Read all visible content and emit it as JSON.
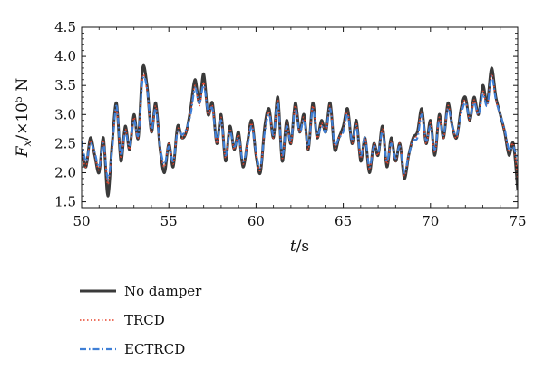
{
  "chart_data": {
    "type": "line",
    "xlabel": {
      "italic": "t",
      "rest": "/s"
    },
    "ylabel": {
      "italic": "F",
      "sub": "x",
      "pre": "/×10",
      "sup": "5",
      "post": " N"
    },
    "xlim": [
      50,
      75
    ],
    "ylim": [
      1.4,
      4.5
    ],
    "xticks": [
      "50",
      "55",
      "60",
      "65",
      "70",
      "75"
    ],
    "yticks": [
      "1.5",
      "2.0",
      "2.5",
      "3.0",
      "3.5",
      "4.0",
      "4.5"
    ],
    "grid": false,
    "legend_position": "below",
    "x": [
      50.0,
      50.25,
      50.5,
      50.75,
      51.0,
      51.25,
      51.5,
      51.75,
      52.0,
      52.25,
      52.5,
      52.75,
      53.0,
      53.25,
      53.5,
      53.75,
      54.0,
      54.25,
      54.5,
      54.75,
      55.0,
      55.25,
      55.5,
      55.75,
      56.0,
      56.25,
      56.5,
      56.75,
      57.0,
      57.25,
      57.5,
      57.75,
      58.0,
      58.25,
      58.5,
      58.75,
      59.0,
      59.25,
      59.5,
      59.75,
      60.0,
      60.25,
      60.5,
      60.75,
      61.0,
      61.25,
      61.5,
      61.75,
      62.0,
      62.25,
      62.5,
      62.75,
      63.0,
      63.25,
      63.5,
      63.75,
      64.0,
      64.25,
      64.5,
      64.75,
      65.0,
      65.25,
      65.5,
      65.75,
      66.0,
      66.25,
      66.5,
      66.75,
      67.0,
      67.25,
      67.5,
      67.75,
      68.0,
      68.25,
      68.5,
      68.75,
      69.0,
      69.25,
      69.5,
      69.75,
      70.0,
      70.25,
      70.5,
      70.75,
      71.0,
      71.25,
      71.5,
      71.75,
      72.0,
      72.25,
      72.5,
      72.75,
      73.0,
      73.25,
      73.5,
      73.75,
      74.0,
      74.25,
      74.5,
      74.75,
      75.0
    ],
    "series": [
      {
        "name": "No damper",
        "color": "#3a3a3a",
        "dash": "solid",
        "values": [
          2.4,
          2.1,
          2.6,
          2.3,
          2.0,
          2.6,
          1.6,
          2.5,
          3.2,
          2.2,
          2.8,
          2.4,
          3.0,
          2.6,
          3.8,
          3.5,
          2.7,
          3.2,
          2.4,
          2.0,
          2.5,
          2.1,
          2.8,
          2.6,
          2.7,
          3.1,
          3.6,
          3.2,
          3.7,
          3.0,
          3.2,
          2.5,
          3.0,
          2.2,
          2.8,
          2.4,
          2.7,
          2.1,
          2.5,
          2.9,
          2.3,
          2.0,
          2.8,
          3.1,
          2.6,
          3.3,
          2.2,
          2.9,
          2.5,
          3.2,
          2.7,
          3.0,
          2.4,
          3.2,
          2.6,
          2.9,
          2.7,
          3.2,
          2.4,
          2.6,
          2.8,
          3.1,
          2.5,
          2.9,
          2.2,
          2.6,
          2.0,
          2.5,
          2.3,
          2.8,
          2.1,
          2.6,
          2.2,
          2.5,
          1.9,
          2.3,
          2.6,
          2.7,
          3.1,
          2.5,
          2.9,
          2.3,
          3.0,
          2.6,
          3.2,
          2.8,
          2.6,
          3.1,
          3.3,
          2.9,
          3.3,
          3.0,
          3.5,
          3.2,
          3.8,
          3.3,
          3.0,
          2.7,
          2.3,
          2.5,
          1.7
        ]
      },
      {
        "name": "TRCD",
        "color": "#e8432b",
        "dash": "dotted",
        "values": [
          2.35,
          2.1,
          2.55,
          2.3,
          2.05,
          2.55,
          1.8,
          2.45,
          3.1,
          2.25,
          2.75,
          2.4,
          2.95,
          2.6,
          3.65,
          3.4,
          2.7,
          3.15,
          2.4,
          2.1,
          2.5,
          2.15,
          2.75,
          2.6,
          2.7,
          3.05,
          3.5,
          3.15,
          3.55,
          3.0,
          3.15,
          2.5,
          2.95,
          2.25,
          2.75,
          2.4,
          2.65,
          2.15,
          2.5,
          2.85,
          2.3,
          2.05,
          2.75,
          3.05,
          2.6,
          3.25,
          2.25,
          2.85,
          2.5,
          3.15,
          2.7,
          2.95,
          2.4,
          3.15,
          2.6,
          2.85,
          2.7,
          3.15,
          2.45,
          2.6,
          2.75,
          3.05,
          2.5,
          2.85,
          2.25,
          2.6,
          2.05,
          2.5,
          2.3,
          2.75,
          2.15,
          2.55,
          2.2,
          2.5,
          1.95,
          2.3,
          2.6,
          2.65,
          3.05,
          2.5,
          2.85,
          2.35,
          2.95,
          2.6,
          3.15,
          2.8,
          2.6,
          3.05,
          3.25,
          2.9,
          3.25,
          3.0,
          3.4,
          3.15,
          3.7,
          3.25,
          3.0,
          2.7,
          2.35,
          2.5,
          1.9
        ]
      },
      {
        "name": "ECTRCD",
        "color": "#3f7fd6",
        "dash": "dashdot",
        "values": [
          2.55,
          2.2,
          2.5,
          2.35,
          2.1,
          2.5,
          1.9,
          2.4,
          3.15,
          2.3,
          2.7,
          2.45,
          2.9,
          2.65,
          3.6,
          3.45,
          2.75,
          3.1,
          2.45,
          2.15,
          2.45,
          2.2,
          2.7,
          2.65,
          2.75,
          3.0,
          3.45,
          3.2,
          3.5,
          3.05,
          3.1,
          2.55,
          2.9,
          2.3,
          2.7,
          2.45,
          2.6,
          2.2,
          2.45,
          2.8,
          2.35,
          2.1,
          2.7,
          3.0,
          2.65,
          3.2,
          2.3,
          2.8,
          2.55,
          3.1,
          2.7,
          2.9,
          2.45,
          3.1,
          2.65,
          2.8,
          2.7,
          3.1,
          2.5,
          2.6,
          2.7,
          3.0,
          2.55,
          2.8,
          2.3,
          2.6,
          2.1,
          2.45,
          2.35,
          2.7,
          2.2,
          2.5,
          2.25,
          2.45,
          2.0,
          2.3,
          2.55,
          2.6,
          3.0,
          2.55,
          2.8,
          2.4,
          2.9,
          2.65,
          3.1,
          2.8,
          2.65,
          3.0,
          3.2,
          2.95,
          3.2,
          3.0,
          3.35,
          3.15,
          3.65,
          3.25,
          3.0,
          2.75,
          2.4,
          2.45,
          2.2
        ]
      }
    ]
  }
}
